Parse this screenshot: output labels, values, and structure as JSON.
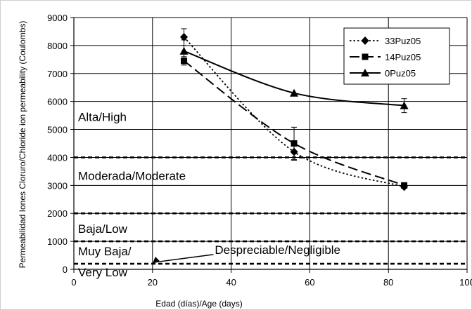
{
  "chart_data": {
    "type": "line",
    "xlabel": "Edad (días)/Age (days)",
    "ylabel": "Permeabilidad Iones Cloruro/Chloride ion permeability  (Coulombs)",
    "xlim": [
      0,
      100
    ],
    "ylim": [
      0,
      9000
    ],
    "x_ticks": [
      "0",
      "20",
      "40",
      "60",
      "80",
      "100"
    ],
    "y_ticks": [
      "0",
      "1000",
      "2000",
      "3000",
      "4000",
      "5000",
      "6000",
      "7000",
      "8000",
      "9000"
    ],
    "grid": true,
    "legend_position": "top-right",
    "series": [
      {
        "name": "33Puz05",
        "marker": "diamond",
        "dash": "dotted",
        "x": [
          28,
          56,
          84
        ],
        "y": [
          8300,
          4200,
          2950
        ],
        "err": [
          300,
          300,
          0
        ]
      },
      {
        "name": "14Puz05",
        "marker": "square",
        "dash": "dashed",
        "x": [
          28,
          56,
          84
        ],
        "y": [
          7450,
          4500,
          3000
        ],
        "err": [
          150,
          580,
          0
        ]
      },
      {
        "name": "0Puz05",
        "marker": "triangle",
        "dash": "solid",
        "x": [
          28,
          56,
          84
        ],
        "y": [
          7800,
          6300,
          5850
        ],
        "err": [
          400,
          0,
          250
        ]
      }
    ],
    "thresholds": [
      4000,
      2000,
      1000,
      200
    ],
    "zone_labels": [
      {
        "text": "Alta/High",
        "y": 5450
      },
      {
        "text": "Moderada/Moderate",
        "y": 3350
      },
      {
        "text": "Baja/Low",
        "y": 1450
      },
      {
        "text": "Muy Baja/",
        "y": 650
      },
      {
        "text": "Very Low",
        "y": -100
      }
    ],
    "annotation": {
      "text": "Despreciable/Negligible",
      "x": 38,
      "y": 680,
      "arrow_to": [
        20,
        200
      ]
    }
  }
}
